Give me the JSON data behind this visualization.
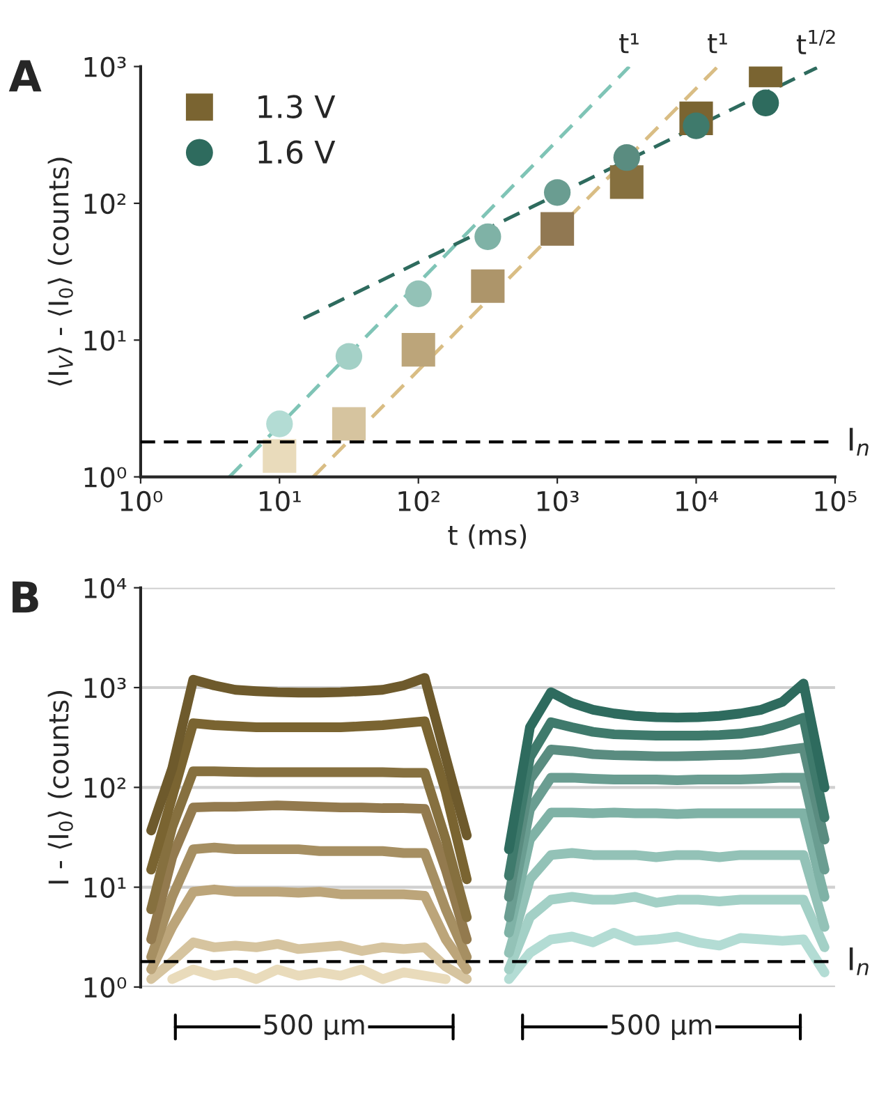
{
  "chart_data": [
    {
      "type": "scatter",
      "title": "A",
      "xlabel": "t (ms)",
      "ylabel": "⟨I$_{V}$⟩ - ⟨I$_{0}$⟩ (counts)",
      "log": "xy",
      "xlim": [
        1,
        100000
      ],
      "ylim": [
        1,
        1000
      ],
      "xticks": [
        {
          "value": 1,
          "label": "10⁰"
        },
        {
          "value": 10,
          "label": "10¹"
        },
        {
          "value": 100,
          "label": "10²"
        },
        {
          "value": 1000,
          "label": "10³"
        },
        {
          "value": 10000,
          "label": "10⁴"
        },
        {
          "value": 100000,
          "label": "10⁵"
        }
      ],
      "yticks": [
        {
          "value": 1,
          "label": "10⁰"
        },
        {
          "value": 10,
          "label": "10¹"
        },
        {
          "value": 100,
          "label": "10²"
        },
        {
          "value": 1000,
          "label": "10³"
        }
      ],
      "x": [
        10,
        31.6,
        100,
        316,
        1000,
        3162,
        10000,
        31623
      ],
      "series": [
        {
          "name": "1.3 V",
          "marker": "square",
          "color": "#7a6431",
          "colors": [
            "#e9dbbb",
            "#d6c49f",
            "#bca57a",
            "#ad956a",
            "#917852",
            "#86703f",
            "#7a6431",
            "#7a6431"
          ],
          "values": [
            1.42,
            2.44,
            8.5,
            24.8,
            65,
            143,
            418,
            937
          ]
        },
        {
          "name": "1.6 V",
          "marker": "circle",
          "color": "#2e6b5e",
          "colors": [
            "#b3dcd4",
            "#a3d0c6",
            "#93c2b7",
            "#7fb2a6",
            "#6a9d91",
            "#5a8c80",
            "#3f7a6c",
            "#2e6b5e"
          ],
          "values": [
            2.44,
            7.6,
            21.8,
            57,
            120,
            216,
            369,
            542
          ]
        },
        {
          "type": "line",
          "line_style": "dashed",
          "color": "#7fc4b6",
          "x": [
            4.36,
            3300
          ],
          "values": [
            1,
            1000
          ]
        },
        {
          "type": "line",
          "line_style": "dashed",
          "color": "#d9bd84",
          "x": [
            17.5,
            14300
          ],
          "values": [
            1,
            1000
          ]
        },
        {
          "type": "line",
          "line_style": "dashed",
          "color": "#2e6b5e",
          "x": [
            14.9,
            74000
          ],
          "values": [
            14.4,
            980
          ]
        }
      ],
      "annotations": [
        {
          "text": "t¹",
          "x": 3300,
          "y": 1000
        },
        {
          "text": "t¹",
          "x": 14300,
          "y": 1000
        },
        {
          "text": "t$^{1/2}$",
          "x": 74000,
          "y": 980
        }
      ],
      "ref_lines": [
        {
          "axis": "y",
          "value": 1.8,
          "label": "I$_{n}$",
          "line_style": "dashed",
          "color": "#000000"
        }
      ],
      "legend": "top left",
      "grid": false
    },
    {
      "type": "line",
      "title": "B",
      "ylabel": "I - ⟨I$_{0}$⟩ (counts)",
      "log": "y",
      "ylim": [
        1,
        10000
      ],
      "yticks": [
        {
          "value": 1,
          "label": "10⁰"
        },
        {
          "value": 10,
          "label": "10¹"
        },
        {
          "value": 100,
          "label": "10²"
        },
        {
          "value": 1000,
          "label": "10³"
        },
        {
          "value": 10000,
          "label": "10⁴"
        }
      ],
      "tick_labels": "y",
      "grid": "y",
      "categories": [
        null,
        null,
        null,
        null,
        null,
        null,
        null,
        null,
        null,
        null,
        null,
        null,
        null,
        null,
        null,
        null,
        null,
        null,
        null,
        null,
        null,
        null,
        null,
        null,
        null,
        null,
        null,
        null,
        null,
        null,
        null,
        null,
        null
      ],
      "series": [
        {
          "color": "#e9dbbb",
          "values": [
            null,
            1.2,
            1.5,
            1.3,
            1.4,
            1.2,
            1.5,
            1.3,
            1.4,
            1.3,
            1.5,
            1.2,
            1.4,
            1.3,
            1.2,
            null,
            null,
            null,
            null,
            null,
            null,
            null,
            null,
            null,
            null,
            null,
            null,
            null,
            null,
            null,
            null,
            null,
            null
          ]
        },
        {
          "color": "#d6c49f",
          "values": [
            1.2,
            1.8,
            2.8,
            2.5,
            2.6,
            2.5,
            2.7,
            2.4,
            2.5,
            2.6,
            2.3,
            2.5,
            2.4,
            2.5,
            1.6,
            1.2,
            null,
            null,
            null,
            null,
            null,
            null,
            null,
            null,
            null,
            null,
            null,
            null,
            null,
            null,
            null,
            null,
            null
          ]
        },
        {
          "color": "#bca57a",
          "values": [
            1.5,
            4,
            9,
            9.5,
            9,
            9,
            9,
            8.8,
            9,
            8.5,
            8.5,
            8.5,
            8.5,
            8.2,
            3,
            1.5,
            null,
            null,
            null,
            null,
            null,
            null,
            null,
            null,
            null,
            null,
            null,
            null,
            null,
            null,
            null,
            null,
            null
          ]
        },
        {
          "color": "#a68f62",
          "values": [
            2,
            8,
            24,
            25,
            24,
            24,
            24,
            24,
            23,
            23,
            23,
            23,
            22,
            22,
            6,
            2,
            null,
            null,
            null,
            null,
            null,
            null,
            null,
            null,
            null,
            null,
            null,
            null,
            null,
            null,
            null,
            null,
            null
          ]
        },
        {
          "color": "#937a4e",
          "values": [
            3,
            20,
            63,
            64,
            64,
            65,
            66,
            65,
            64,
            63,
            63,
            62,
            62,
            61,
            15,
            3,
            null,
            null,
            null,
            null,
            null,
            null,
            null,
            null,
            null,
            null,
            null,
            null,
            null,
            null,
            null,
            null,
            null
          ]
        },
        {
          "color": "#86703f",
          "values": [
            6,
            40,
            145,
            145,
            143,
            142,
            142,
            142,
            142,
            142,
            142,
            142,
            140,
            140,
            30,
            5,
            null,
            null,
            null,
            null,
            null,
            null,
            null,
            null,
            null,
            null,
            null,
            null,
            null,
            null,
            null,
            null,
            null
          ]
        },
        {
          "color": "#7a6431",
          "values": [
            15,
            80,
            440,
            420,
            410,
            400,
            400,
            400,
            400,
            400,
            410,
            420,
            440,
            460,
            90,
            12,
            null,
            null,
            null,
            null,
            null,
            null,
            null,
            null,
            null,
            null,
            null,
            null,
            null,
            null,
            null,
            null,
            null
          ]
        },
        {
          "color": "#6e5a2c",
          "values": [
            37,
            155,
            1200,
            1050,
            950,
            920,
            900,
            890,
            890,
            900,
            920,
            950,
            1050,
            1250,
            200,
            33,
            null,
            null,
            null,
            null,
            null,
            null,
            null,
            null,
            null,
            null,
            null,
            null,
            null,
            null,
            null,
            null,
            null
          ]
        },
        {
          "color": "#b3dcd4",
          "values": [
            null,
            null,
            null,
            null,
            null,
            null,
            null,
            null,
            null,
            null,
            null,
            null,
            null,
            null,
            null,
            null,
            null,
            1.2,
            2.2,
            3,
            3.2,
            2.8,
            3.5,
            2.9,
            3,
            3.2,
            2.8,
            2.6,
            3.1,
            3,
            2.9,
            3,
            1.4
          ]
        },
        {
          "color": "#a3d0c6",
          "values": [
            null,
            null,
            null,
            null,
            null,
            null,
            null,
            null,
            null,
            null,
            null,
            null,
            null,
            null,
            null,
            null,
            null,
            1.5,
            5,
            7.5,
            8,
            7.5,
            7.5,
            8,
            7,
            7.5,
            7.5,
            7.2,
            7.5,
            7.5,
            7.5,
            7.5,
            2.5
          ]
        },
        {
          "color": "#93c2b7",
          "values": [
            null,
            null,
            null,
            null,
            null,
            null,
            null,
            null,
            null,
            null,
            null,
            null,
            null,
            null,
            null,
            null,
            null,
            2.2,
            12,
            21,
            22,
            21,
            21,
            21,
            20,
            21,
            21,
            20,
            21,
            21,
            21,
            21,
            4
          ]
        },
        {
          "color": "#7fb2a6",
          "values": [
            null,
            null,
            null,
            null,
            null,
            null,
            null,
            null,
            null,
            null,
            null,
            null,
            null,
            null,
            null,
            null,
            null,
            3.5,
            30,
            56,
            56,
            55,
            56,
            55,
            55,
            54,
            55,
            55,
            55,
            55,
            55,
            55,
            8
          ]
        },
        {
          "color": "#6a9d91",
          "values": [
            null,
            null,
            null,
            null,
            null,
            null,
            null,
            null,
            null,
            null,
            null,
            null,
            null,
            null,
            null,
            null,
            null,
            5,
            60,
            125,
            125,
            122,
            120,
            120,
            120,
            118,
            120,
            120,
            120,
            122,
            125,
            125,
            15
          ]
        },
        {
          "color": "#5a8c80",
          "values": [
            null,
            null,
            null,
            null,
            null,
            null,
            null,
            null,
            null,
            null,
            null,
            null,
            null,
            null,
            null,
            null,
            null,
            8,
            120,
            240,
            230,
            215,
            210,
            208,
            205,
            205,
            207,
            210,
            212,
            220,
            235,
            250,
            30
          ]
        },
        {
          "color": "#3f7a6c",
          "values": [
            null,
            null,
            null,
            null,
            null,
            null,
            null,
            null,
            null,
            null,
            null,
            null,
            null,
            null,
            null,
            null,
            null,
            13,
            200,
            450,
            400,
            360,
            340,
            335,
            330,
            330,
            330,
            335,
            345,
            370,
            420,
            500,
            50
          ]
        },
        {
          "color": "#2e6b5e",
          "values": [
            null,
            null,
            null,
            null,
            null,
            null,
            null,
            null,
            null,
            null,
            null,
            null,
            null,
            null,
            null,
            null,
            null,
            24,
            400,
            900,
            700,
            600,
            550,
            520,
            505,
            500,
            505,
            520,
            550,
            600,
            720,
            1100,
            100
          ]
        }
      ],
      "annotations": [
        "500 µm",
        "500 µm"
      ],
      "ref_lines": [
        {
          "axis": "y",
          "value": 1.8,
          "label": "I$_{n}$",
          "line_style": "dashed",
          "color": "#000000"
        }
      ]
    }
  ]
}
